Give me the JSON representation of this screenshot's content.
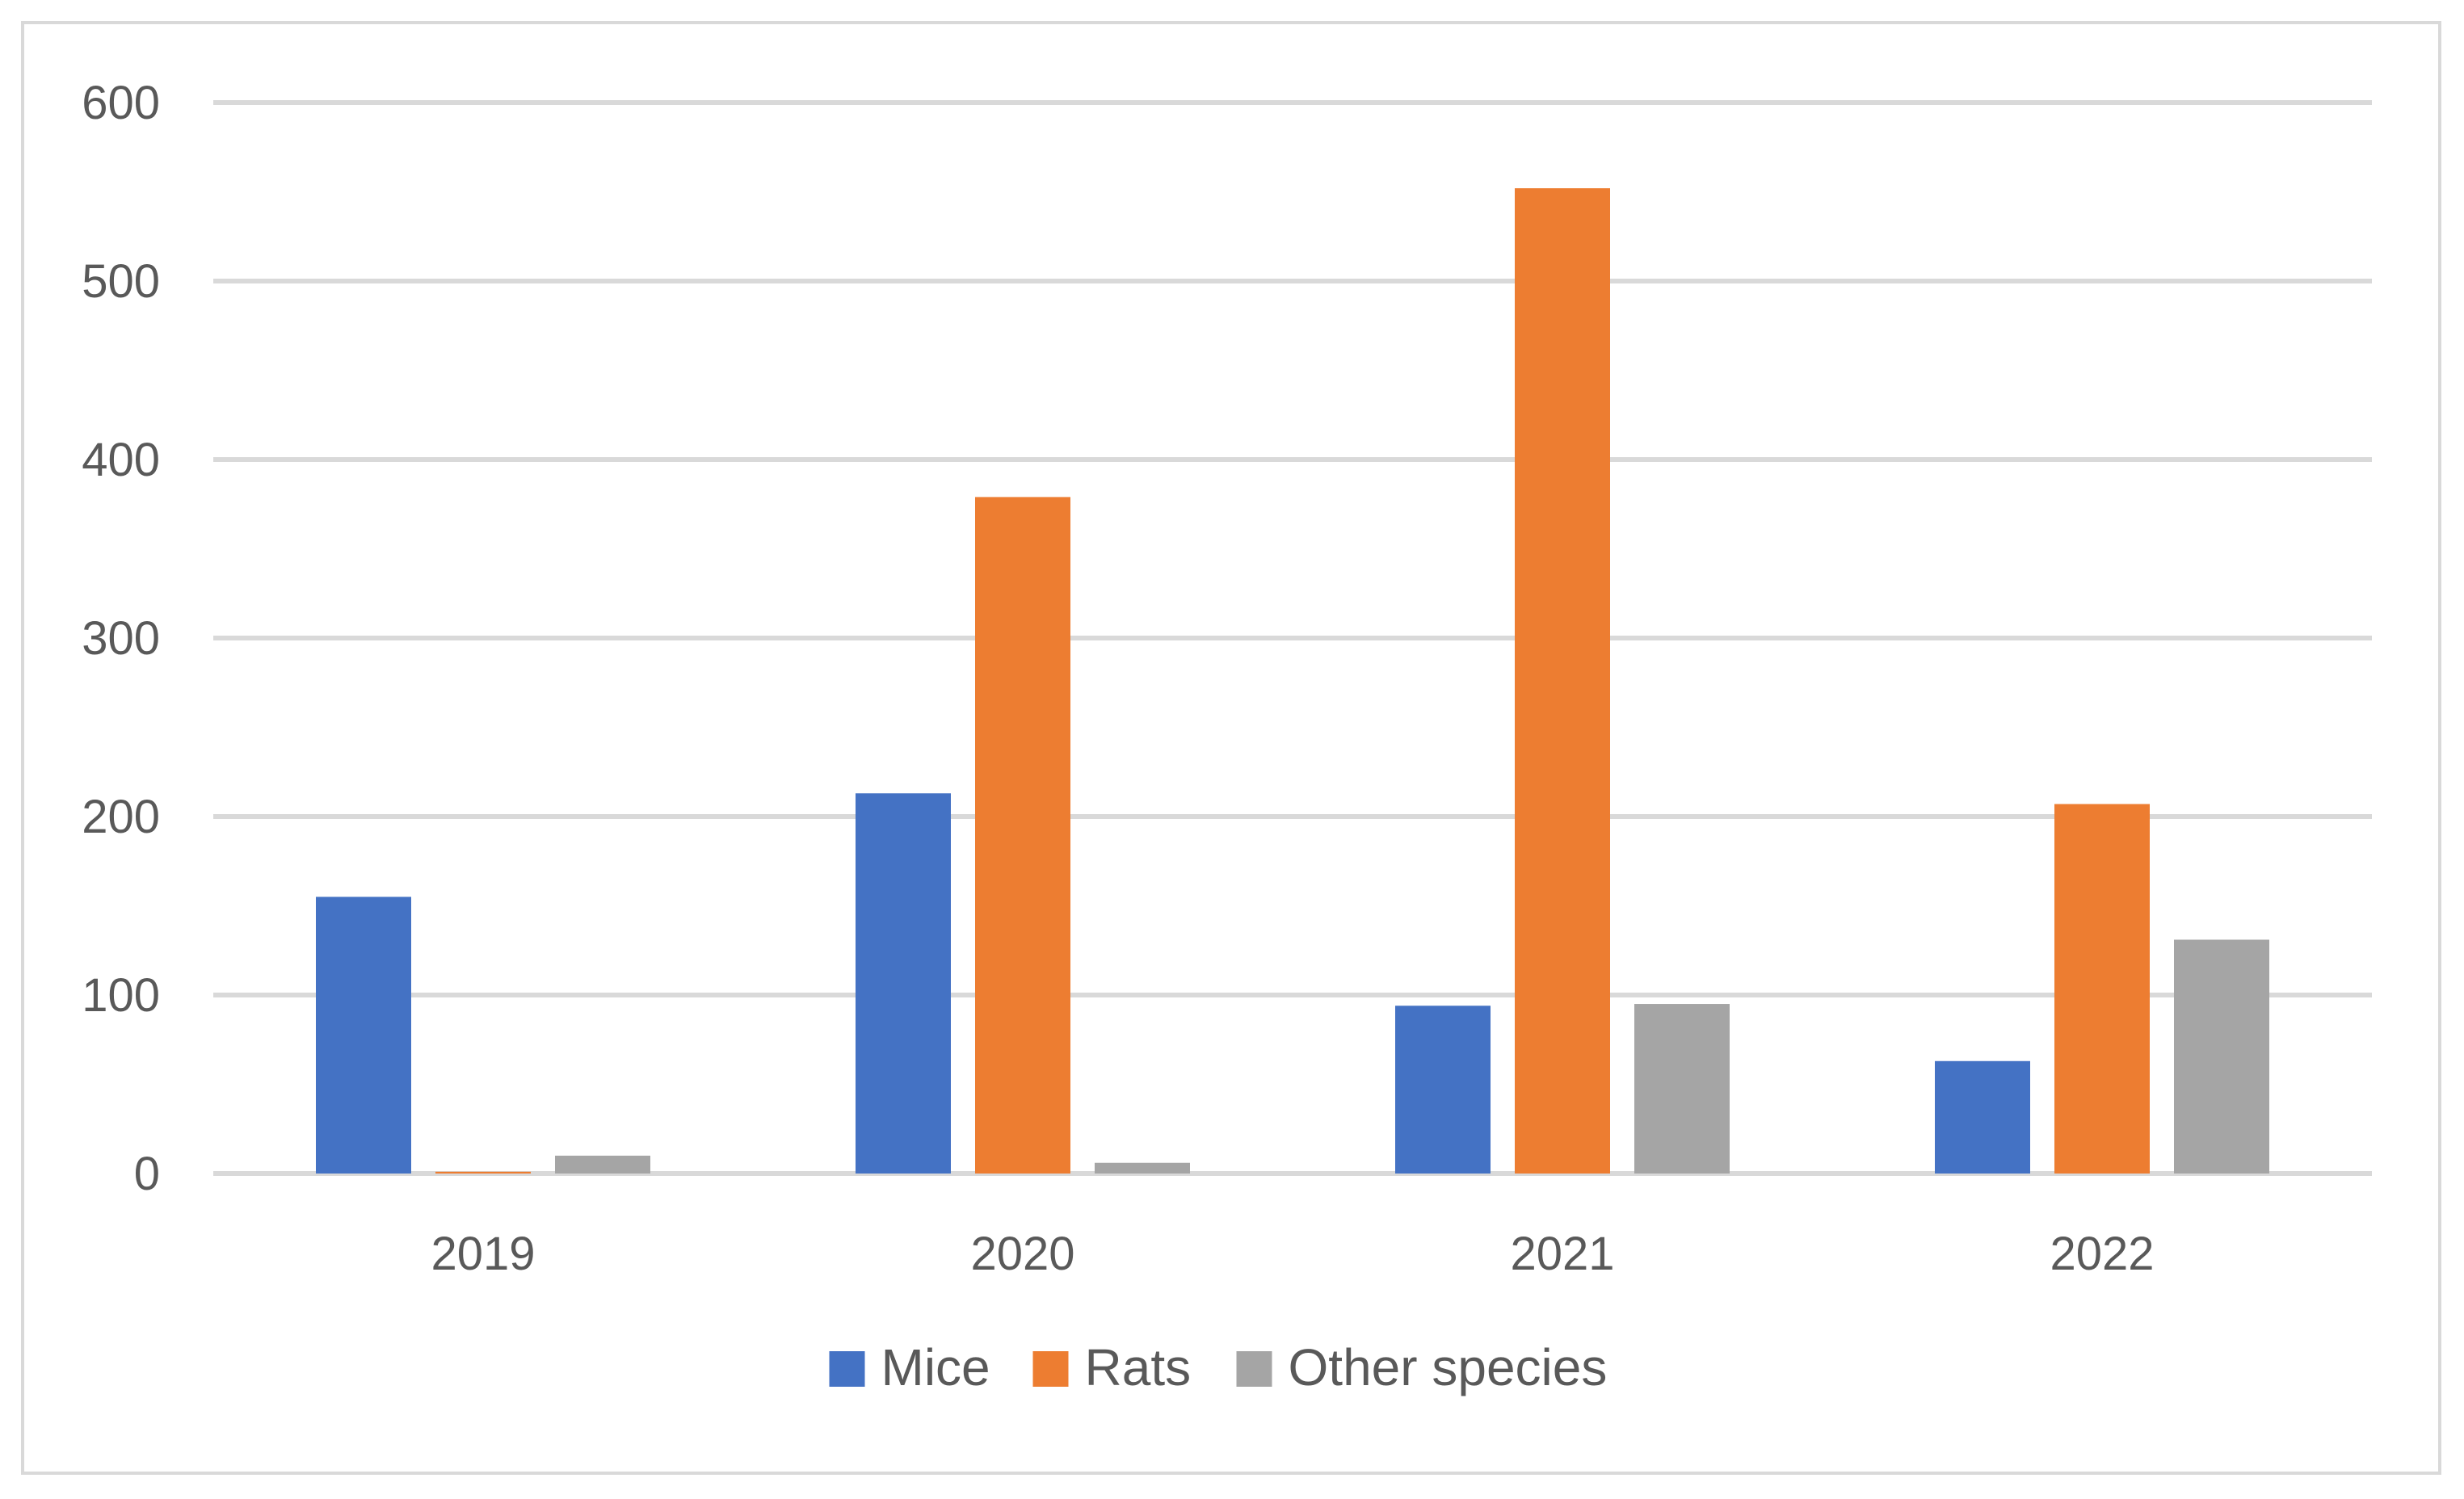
{
  "chart_data": {
    "type": "bar",
    "title": "",
    "xlabel": "",
    "ylabel": "",
    "categories": [
      "2019",
      "2020",
      "2021",
      "2022"
    ],
    "series": [
      {
        "name": "Mice",
        "color": "#4472c4",
        "values": [
          155,
          213,
          94,
          63
        ]
      },
      {
        "name": "Rats",
        "color": "#ed7d31",
        "values": [
          1,
          379,
          552,
          207
        ]
      },
      {
        "name": "Other species",
        "color": "#a5a5a5",
        "values": [
          10,
          6,
          95,
          131
        ]
      }
    ],
    "ylim": [
      0,
      600
    ],
    "yticks": [
      0,
      100,
      200,
      300,
      400,
      500,
      600
    ],
    "yticklabels": [
      "0",
      "100",
      "200",
      "300",
      "400",
      "500",
      "600"
    ],
    "grid": true,
    "legend_position": "bottom"
  }
}
